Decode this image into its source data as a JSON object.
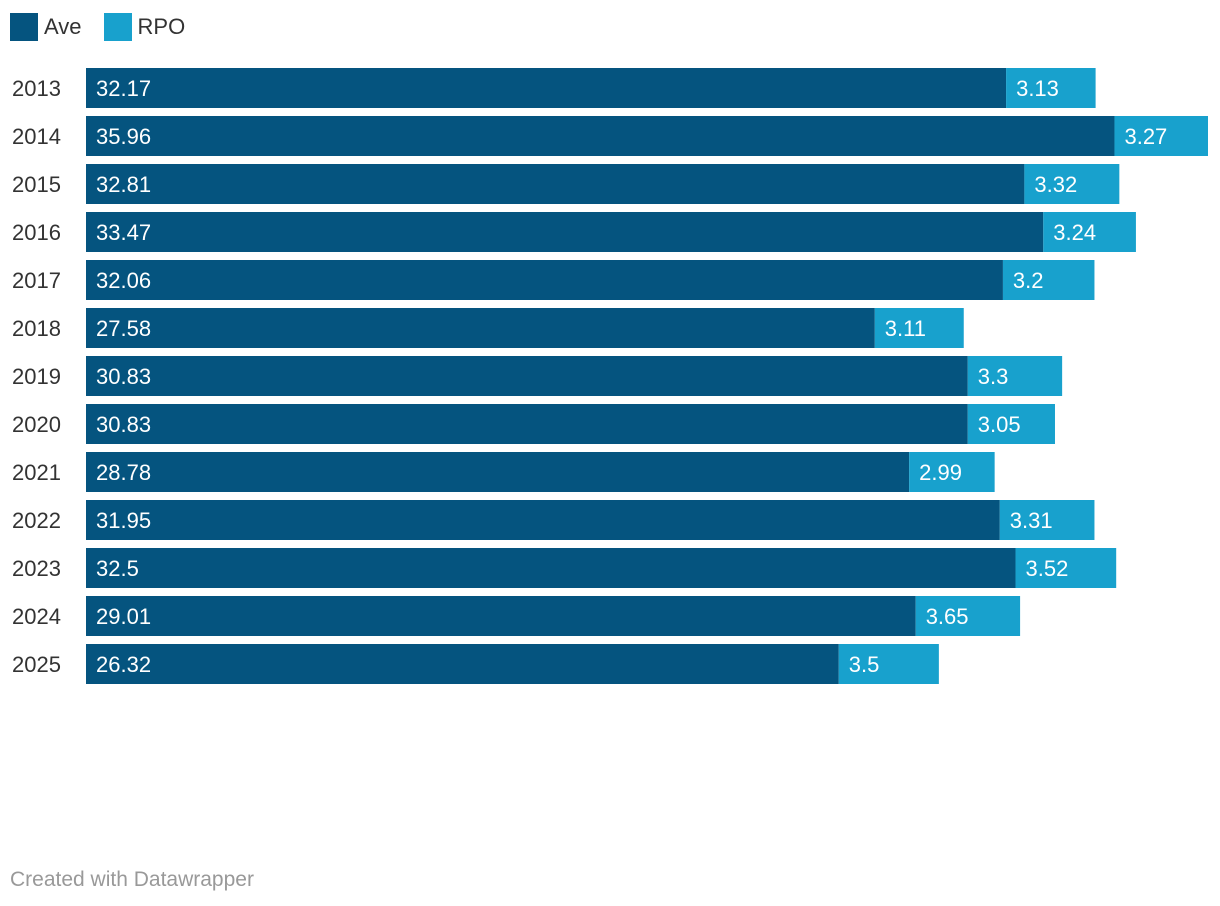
{
  "chart_data": {
    "type": "bar",
    "orientation": "horizontal",
    "stacked": true,
    "categories": [
      "2013",
      "2014",
      "2015",
      "2016",
      "2017",
      "2018",
      "2019",
      "2020",
      "2021",
      "2022",
      "2023",
      "2024",
      "2025"
    ],
    "series": [
      {
        "name": "Ave",
        "color": "#05547f",
        "values": [
          32.17,
          35.96,
          32.81,
          33.47,
          32.06,
          27.58,
          30.83,
          30.83,
          28.78,
          31.95,
          32.5,
          29.01,
          26.32
        ],
        "labels": [
          "32.17",
          "35.96",
          "32.81",
          "33.47",
          "32.06",
          "27.58",
          "30.83",
          "30.83",
          "28.78",
          "31.95",
          "32.5",
          "29.01",
          "26.32"
        ]
      },
      {
        "name": "RPO",
        "color": "#18a1cd",
        "values": [
          3.13,
          3.27,
          3.32,
          3.24,
          3.2,
          3.11,
          3.3,
          3.05,
          2.99,
          3.31,
          3.52,
          3.65,
          3.5
        ],
        "labels": [
          "3.13",
          "3.27",
          "3.32",
          "3.24",
          "3.2",
          "3.11",
          "3.3",
          "3.05",
          "2.99",
          "3.31",
          "3.52",
          "3.65",
          "3.5"
        ]
      }
    ],
    "xlim": [
      0,
      39.23
    ],
    "grid": false,
    "legend": "top-left"
  },
  "footer": {
    "credit": "Created with Datawrapper"
  }
}
